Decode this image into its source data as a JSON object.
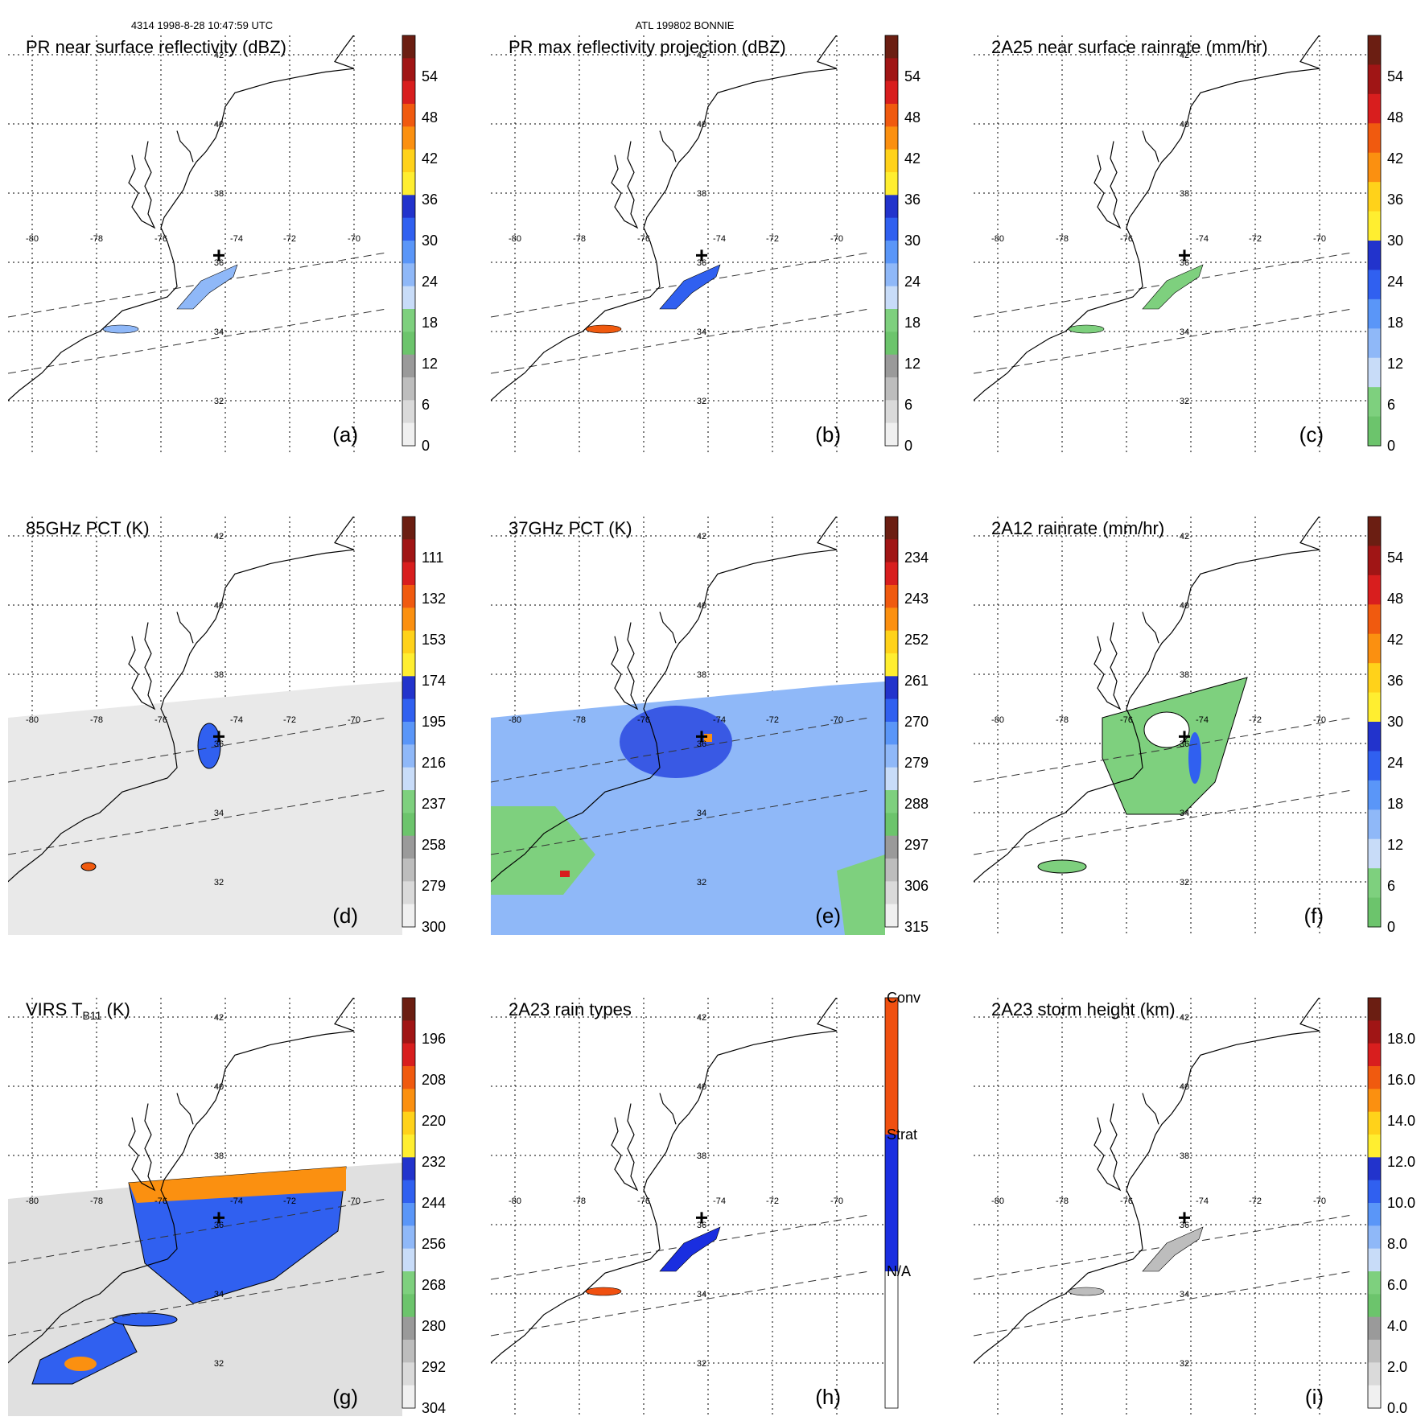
{
  "header": {
    "orbit_time": "4314 1998-8-28 10:47:59 UTC",
    "storm": "ATL 199802 BONNIE"
  },
  "lat_labels": [
    "42",
    "40",
    "38",
    "36",
    "34",
    "32"
  ],
  "lon_labels": [
    "-80",
    "-78",
    "-76",
    "-74",
    "-72",
    "-70"
  ],
  "panels": [
    {
      "id": "a",
      "title": "PR near surface reflectivity (dBZ)",
      "label": "(a)",
      "colorbar": {
        "ticks": [
          "54",
          "48",
          "42",
          "36",
          "30",
          "24",
          "18",
          "12",
          "6",
          "0"
        ],
        "colors": [
          "#6b1e12",
          "#a01515",
          "#d81e1e",
          "#f05a0f",
          "#fb9010",
          "#ffd21a",
          "#ffee30",
          "#2233cc",
          "#3060f0",
          "#5a96f8",
          "#8fb8f8",
          "#c8dcf8",
          "#7ed07e",
          "#6cc46c",
          "#9a9a9a",
          "#bdbdbd",
          "#dadada",
          "#f0f0f0"
        ]
      }
    },
    {
      "id": "b",
      "title": "PR max reflectivity projection (dBZ)",
      "label": "(b)",
      "colorbar": {
        "ticks": [
          "54",
          "48",
          "42",
          "36",
          "30",
          "24",
          "18",
          "12",
          "6",
          "0"
        ],
        "colors": [
          "#6b1e12",
          "#a01515",
          "#d81e1e",
          "#f05a0f",
          "#fb9010",
          "#ffd21a",
          "#ffee30",
          "#2233cc",
          "#3060f0",
          "#5a96f8",
          "#8fb8f8",
          "#c8dcf8",
          "#7ed07e",
          "#6cc46c",
          "#9a9a9a",
          "#bdbdbd",
          "#dadada",
          "#f0f0f0"
        ]
      }
    },
    {
      "id": "c",
      "title": "2A25 near surface rainrate (mm/hr)",
      "label": "(c)",
      "colorbar": {
        "ticks": [
          "54",
          "48",
          "42",
          "36",
          "30",
          "24",
          "18",
          "12",
          "6",
          "0"
        ],
        "colors": [
          "#6b1e12",
          "#a01515",
          "#d81e1e",
          "#f05a0f",
          "#fb9010",
          "#ffd21a",
          "#ffee30",
          "#2233cc",
          "#3060f0",
          "#5a96f8",
          "#8fb8f8",
          "#c8dcf8",
          "#7ed07e",
          "#6cc46c"
        ]
      }
    },
    {
      "id": "d",
      "title": "85GHz PCT (K)",
      "label": "(d)",
      "colorbar": {
        "ticks": [
          "111",
          "132",
          "153",
          "174",
          "195",
          "216",
          "237",
          "258",
          "279",
          "300"
        ],
        "colors": [
          "#6b1e12",
          "#a01515",
          "#d81e1e",
          "#f05a0f",
          "#fb9010",
          "#ffd21a",
          "#ffee30",
          "#2233cc",
          "#3060f0",
          "#5a96f8",
          "#8fb8f8",
          "#c8dcf8",
          "#7ed07e",
          "#6cc46c",
          "#9a9a9a",
          "#bdbdbd",
          "#dadada",
          "#f0f0f0"
        ]
      }
    },
    {
      "id": "e",
      "title": "37GHz PCT (K)",
      "label": "(e)",
      "colorbar": {
        "ticks": [
          "234",
          "243",
          "252",
          "261",
          "270",
          "279",
          "288",
          "297",
          "306",
          "315"
        ],
        "colors": [
          "#6b1e12",
          "#a01515",
          "#d81e1e",
          "#f05a0f",
          "#fb9010",
          "#ffd21a",
          "#ffee30",
          "#2233cc",
          "#3060f0",
          "#5a96f8",
          "#8fb8f8",
          "#c8dcf8",
          "#7ed07e",
          "#6cc46c",
          "#9a9a9a",
          "#bdbdbd",
          "#dadada",
          "#f0f0f0"
        ]
      }
    },
    {
      "id": "f",
      "title": "2A12 rainrate (mm/hr)",
      "label": "(f)",
      "colorbar": {
        "ticks": [
          "54",
          "48",
          "42",
          "36",
          "30",
          "24",
          "18",
          "12",
          "6",
          "0"
        ],
        "colors": [
          "#6b1e12",
          "#a01515",
          "#d81e1e",
          "#f05a0f",
          "#fb9010",
          "#ffd21a",
          "#ffee30",
          "#2233cc",
          "#3060f0",
          "#5a96f8",
          "#8fb8f8",
          "#c8dcf8",
          "#7ed07e",
          "#6cc46c"
        ]
      }
    },
    {
      "id": "g",
      "title": "VIRS T",
      "title_sub": "B11",
      "title_tail": " (K)",
      "label": "(g)",
      "colorbar": {
        "ticks": [
          "196",
          "208",
          "220",
          "232",
          "244",
          "256",
          "268",
          "280",
          "292",
          "304"
        ],
        "colors": [
          "#6b1e12",
          "#a01515",
          "#d81e1e",
          "#f05a0f",
          "#fb9010",
          "#ffd21a",
          "#ffee30",
          "#2233cc",
          "#3060f0",
          "#5a96f8",
          "#8fb8f8",
          "#c8dcf8",
          "#7ed07e",
          "#6cc46c",
          "#9a9a9a",
          "#bdbdbd",
          "#dadada",
          "#f0f0f0"
        ]
      }
    },
    {
      "id": "h",
      "title": "2A23 rain types",
      "label": "(h)",
      "categorical": [
        "Conv",
        "Strat",
        "N/A"
      ],
      "category_colors": [
        "#f05010",
        "#1a2ee0",
        "#ffffff"
      ]
    },
    {
      "id": "i",
      "title": "2A23 storm height (km)",
      "label": "(i)",
      "colorbar": {
        "ticks": [
          "18.0",
          "16.0",
          "14.0",
          "12.0",
          "10.0",
          "8.0",
          "6.0",
          "4.0",
          "2.0",
          "0.0"
        ],
        "colors": [
          "#6b1e12",
          "#a01515",
          "#d81e1e",
          "#f05a0f",
          "#fb9010",
          "#ffd21a",
          "#ffee30",
          "#2233cc",
          "#3060f0",
          "#5a96f8",
          "#8fb8f8",
          "#c8dcf8",
          "#7ed07e",
          "#6cc46c",
          "#9a9a9a",
          "#bdbdbd",
          "#dadada",
          "#f0f0f0"
        ]
      }
    }
  ]
}
